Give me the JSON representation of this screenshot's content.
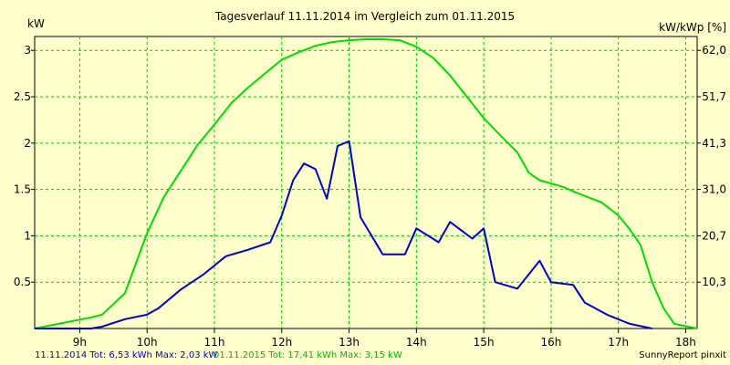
{
  "chart_data": {
    "type": "line",
    "title": "Tagesverlauf 11.11.2014 im Vergleich zum 01.11.2015",
    "ylabel_left": "kW",
    "ylabel_right": "kW/kWp [%]",
    "x_ticks": [
      {
        "label": "9h",
        "value": 9
      },
      {
        "label": "10h",
        "value": 10
      },
      {
        "label": "11h",
        "value": 11
      },
      {
        "label": "12h",
        "value": 12
      },
      {
        "label": "13h",
        "value": 13
      },
      {
        "label": "14h",
        "value": 14
      },
      {
        "label": "15h",
        "value": 15
      },
      {
        "label": "16h",
        "value": 16
      },
      {
        "label": "17h",
        "value": 17
      },
      {
        "label": "18h",
        "value": 18
      }
    ],
    "y_ticks_left": [
      {
        "label": "0.5",
        "value": 0.5
      },
      {
        "label": "1",
        "value": 1
      },
      {
        "label": "1.5",
        "value": 1.5
      },
      {
        "label": "2",
        "value": 2
      },
      {
        "label": "2.5",
        "value": 2.5
      },
      {
        "label": "3",
        "value": 3
      }
    ],
    "y_ticks_right": [
      {
        "label": "10,3",
        "value": 0.5
      },
      {
        "label": "20,7",
        "value": 1
      },
      {
        "label": "31,0",
        "value": 1.5
      },
      {
        "label": "41,3",
        "value": 2
      },
      {
        "label": "51,7",
        "value": 2.5
      },
      {
        "label": "62,0",
        "value": 3
      }
    ],
    "xlim": [
      8.33,
      18.17
    ],
    "ylim": [
      0,
      3.15
    ],
    "grid": true,
    "series": [
      {
        "color": "#00dd00",
        "points": [
          [
            8.33,
            0
          ],
          [
            9.17,
            0.12
          ],
          [
            9.33,
            0.15
          ],
          [
            9.67,
            0.38
          ],
          [
            10.0,
            1.03
          ],
          [
            10.25,
            1.42
          ],
          [
            10.5,
            1.7
          ],
          [
            10.75,
            1.98
          ],
          [
            11.0,
            2.2
          ],
          [
            11.25,
            2.43
          ],
          [
            11.5,
            2.6
          ],
          [
            11.75,
            2.75
          ],
          [
            12.0,
            2.9
          ],
          [
            12.25,
            2.98
          ],
          [
            12.5,
            3.05
          ],
          [
            12.75,
            3.09
          ],
          [
            13.0,
            3.11
          ],
          [
            13.25,
            3.12
          ],
          [
            13.5,
            3.12
          ],
          [
            13.75,
            3.11
          ],
          [
            14.0,
            3.04
          ],
          [
            14.25,
            2.92
          ],
          [
            14.5,
            2.73
          ],
          [
            14.75,
            2.5
          ],
          [
            15.0,
            2.27
          ],
          [
            15.25,
            2.08
          ],
          [
            15.5,
            1.9
          ],
          [
            15.67,
            1.68
          ],
          [
            15.83,
            1.6
          ],
          [
            16.17,
            1.53
          ],
          [
            16.33,
            1.48
          ],
          [
            16.5,
            1.43
          ],
          [
            16.75,
            1.36
          ],
          [
            17.0,
            1.22
          ],
          [
            17.17,
            1.07
          ],
          [
            17.33,
            0.9
          ],
          [
            17.5,
            0.5
          ],
          [
            17.67,
            0.22
          ],
          [
            17.83,
            0.05
          ],
          [
            18.17,
            0
          ]
        ]
      },
      {
        "color": "#0000cc",
        "points": [
          [
            8.33,
            0
          ],
          [
            8.83,
            0
          ],
          [
            9.17,
            0
          ],
          [
            9.33,
            0.02
          ],
          [
            9.67,
            0.1
          ],
          [
            10.0,
            0.15
          ],
          [
            10.17,
            0.22
          ],
          [
            10.5,
            0.42
          ],
          [
            10.83,
            0.58
          ],
          [
            11.17,
            0.78
          ],
          [
            11.5,
            0.85
          ],
          [
            11.83,
            0.93
          ],
          [
            12.0,
            1.22
          ],
          [
            12.17,
            1.6
          ],
          [
            12.33,
            1.78
          ],
          [
            12.5,
            1.72
          ],
          [
            12.67,
            1.4
          ],
          [
            12.83,
            1.97
          ],
          [
            13.0,
            2.02
          ],
          [
            13.17,
            1.2
          ],
          [
            13.5,
            0.8
          ],
          [
            13.83,
            0.8
          ],
          [
            14.0,
            1.08
          ],
          [
            14.33,
            0.93
          ],
          [
            14.5,
            1.15
          ],
          [
            14.83,
            0.97
          ],
          [
            15.0,
            1.08
          ],
          [
            15.17,
            0.5
          ],
          [
            15.5,
            0.43
          ],
          [
            15.83,
            0.73
          ],
          [
            16.0,
            0.5
          ],
          [
            16.33,
            0.47
          ],
          [
            16.5,
            0.28
          ],
          [
            16.83,
            0.15
          ],
          [
            17.17,
            0.05
          ],
          [
            17.5,
            0
          ]
        ]
      }
    ],
    "footer": {
      "left_blue": "11.11.2014 Tot: 6,53 kWh Max: 2,03 kW",
      "left_green": "01.11.2015 Tot: 17,41 kWh Max: 3,15 kW",
      "right": "SunnyReport pinxit"
    }
  }
}
